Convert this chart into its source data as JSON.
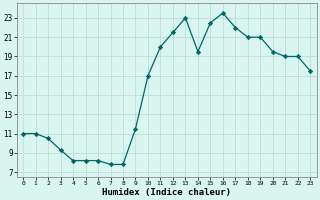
{
  "x": [
    0,
    1,
    2,
    3,
    4,
    5,
    6,
    7,
    8,
    9,
    10,
    11,
    12,
    13,
    14,
    15,
    16,
    17,
    18,
    19,
    20,
    21,
    22,
    23
  ],
  "y": [
    11,
    11,
    10.5,
    9.3,
    8.2,
    8.2,
    8.2,
    7.8,
    7.8,
    11.5,
    17,
    20,
    21.5,
    23,
    19.5,
    22.5,
    23.5,
    22,
    21,
    21,
    19.5,
    19,
    19,
    17.5
  ],
  "line_color": "#006666",
  "marker": "D",
  "marker_size": 2.2,
  "bg_color": "#d8f5f0",
  "grid_color": "#c0ddd8",
  "xlabel": "Humidex (Indice chaleur)",
  "ylabel_ticks": [
    7,
    9,
    11,
    13,
    15,
    17,
    19,
    21,
    23
  ],
  "xlim": [
    -0.5,
    23.5
  ],
  "ylim": [
    6.5,
    24.5
  ],
  "xticks": [
    0,
    1,
    2,
    3,
    4,
    5,
    6,
    7,
    8,
    9,
    10,
    11,
    12,
    13,
    14,
    15,
    16,
    17,
    18,
    19,
    20,
    21,
    22,
    23
  ]
}
